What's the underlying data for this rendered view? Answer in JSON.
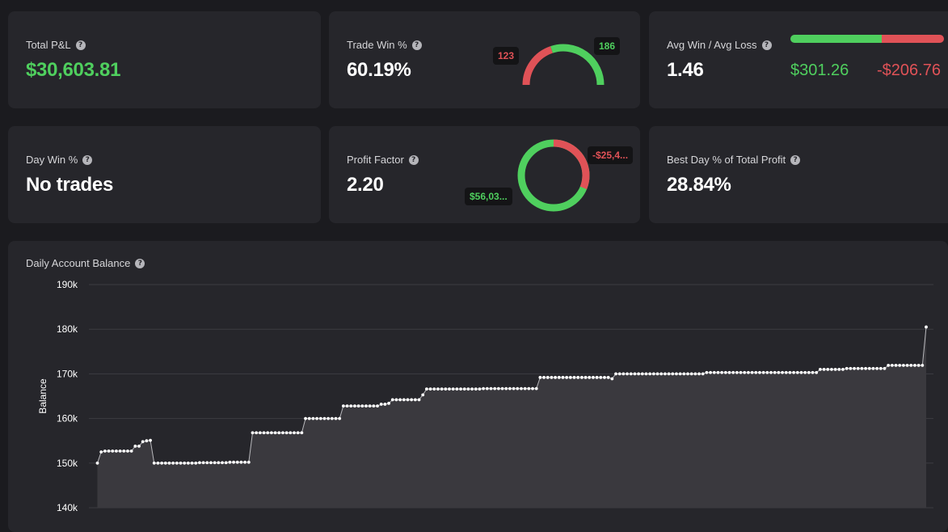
{
  "cards": {
    "total_pnl": {
      "label": "Total P&L",
      "value": "$30,603.81"
    },
    "trade_win": {
      "label": "Trade Win %",
      "value": "60.19%",
      "wins": "186",
      "losses": "123",
      "win_fraction": 0.6019
    },
    "avg_win_loss": {
      "label": "Avg Win / Avg Loss",
      "value": "1.46",
      "avg_win": "$301.26",
      "avg_loss": "-$206.76",
      "win_fraction": 0.593
    },
    "day_win": {
      "label": "Day Win %",
      "value": "No trades"
    },
    "profit_factor": {
      "label": "Profit Factor",
      "value": "2.20",
      "gross_profit": "$56,03...",
      "gross_loss": "-$25,4...",
      "profit_fraction": 0.6875
    },
    "best_day": {
      "label": "Best Day % of Total Profit",
      "value": "28.84%"
    }
  },
  "colors": {
    "win": "#4fcf5e",
    "loss": "#e05257",
    "card": "#26262b",
    "background": "#1b1b1f"
  },
  "chart_data": {
    "type": "line",
    "title": "Daily Account Balance",
    "ylabel": "Balance",
    "ylim": [
      140000,
      190000
    ],
    "yticks": [
      {
        "value": 190000,
        "label": "190k"
      },
      {
        "value": 180000,
        "label": "180k"
      },
      {
        "value": 170000,
        "label": "170k"
      },
      {
        "value": 160000,
        "label": "160k"
      },
      {
        "value": 150000,
        "label": "150k"
      },
      {
        "value": 140000,
        "label": "140k"
      }
    ],
    "grid": true,
    "fill": "area",
    "values": [
      150000,
      152500,
      152700,
      152700,
      152700,
      152700,
      152700,
      152700,
      152700,
      152700,
      153800,
      153800,
      154800,
      155000,
      155100,
      150000,
      150000,
      150000,
      150000,
      150000,
      150000,
      150000,
      150000,
      150000,
      150000,
      150000,
      150000,
      150100,
      150100,
      150100,
      150100,
      150100,
      150100,
      150100,
      150100,
      150200,
      150200,
      150200,
      150200,
      150200,
      150200,
      156800,
      156800,
      156800,
      156800,
      156800,
      156800,
      156800,
      156800,
      156800,
      156800,
      156800,
      156800,
      156800,
      156800,
      160000,
      160000,
      160000,
      160000,
      160000,
      160000,
      160000,
      160000,
      160000,
      160000,
      162800,
      162800,
      162800,
      162800,
      162800,
      162800,
      162800,
      162800,
      162800,
      162800,
      163200,
      163200,
      163400,
      164200,
      164200,
      164200,
      164200,
      164200,
      164200,
      164200,
      164200,
      165300,
      166600,
      166600,
      166600,
      166600,
      166600,
      166600,
      166600,
      166600,
      166600,
      166600,
      166600,
      166600,
      166600,
      166600,
      166600,
      166700,
      166700,
      166700,
      166700,
      166700,
      166700,
      166700,
      166700,
      166700,
      166700,
      166700,
      166700,
      166700,
      166700,
      166700,
      169200,
      169200,
      169200,
      169200,
      169200,
      169200,
      169200,
      169200,
      169200,
      169200,
      169200,
      169200,
      169200,
      169200,
      169200,
      169200,
      169200,
      169200,
      169200,
      168900,
      170000,
      170000,
      170000,
      170000,
      170000,
      170000,
      170000,
      170000,
      170000,
      170000,
      170000,
      170000,
      170000,
      170000,
      170000,
      170000,
      170000,
      170000,
      170000,
      170000,
      170000,
      170000,
      170000,
      170000,
      170300,
      170300,
      170300,
      170300,
      170300,
      170300,
      170300,
      170300,
      170300,
      170300,
      170300,
      170300,
      170300,
      170300,
      170300,
      170300,
      170300,
      170300,
      170300,
      170300,
      170300,
      170300,
      170300,
      170300,
      170300,
      170300,
      170300,
      170300,
      170300,
      170300,
      171000,
      171000,
      171000,
      171000,
      171000,
      171000,
      171000,
      171200,
      171200,
      171200,
      171200,
      171200,
      171200,
      171200,
      171200,
      171200,
      171200,
      171200,
      171900,
      171900,
      171900,
      171900,
      171900,
      171900,
      171900,
      171900,
      171900,
      171900,
      180500
    ]
  }
}
